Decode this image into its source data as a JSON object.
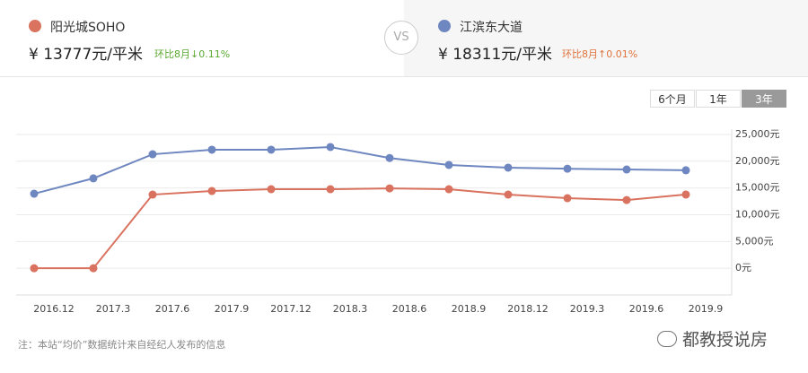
{
  "header": {
    "items": [
      {
        "name": "阳光城SOHO",
        "price": "¥ 13777元/平米",
        "change": "环比8月↓0.11%"
      },
      {
        "name": "江滨东大道",
        "price": "¥ 18311元/平米",
        "change": "环比8月↑0.01%"
      }
    ],
    "vs": "VS"
  },
  "buttons": [
    "6个月",
    "1年",
    "3年"
  ],
  "note": "注：本站“均价”数据统计来自经纪人发布的信息",
  "watermark": "都教授说房",
  "chart_data": {
    "type": "line",
    "categories": [
      "2016.12",
      "2017.3",
      "2017.6",
      "2017.9",
      "2017.12",
      "2018.3",
      "2018.6",
      "2018.9",
      "2018.12",
      "2019.3",
      "2019.6",
      "2019.9"
    ],
    "series": [
      {
        "name": "阳光城SOHO",
        "color": "#d9725f",
        "values": [
          0,
          0,
          13760,
          14430,
          14770,
          14770,
          14930,
          14770,
          13760,
          13090,
          12750,
          13777
        ]
      },
      {
        "name": "江滨东大道",
        "color": "#6f87c0",
        "values": [
          13930,
          16800,
          21300,
          22150,
          22150,
          22650,
          20600,
          19300,
          18800,
          18600,
          18450,
          18311
        ]
      }
    ],
    "ylim": [
      -5000,
      26000
    ],
    "yticks": [
      {
        "value": 0,
        "label": "0元"
      },
      {
        "value": 5000,
        "label": "5,000元"
      },
      {
        "value": 10000,
        "label": "10,000元"
      },
      {
        "value": 15000,
        "label": "15,000元"
      },
      {
        "value": 20000,
        "label": "20,000元"
      },
      {
        "value": 25000,
        "label": "25,000元"
      }
    ],
    "grid": true
  }
}
